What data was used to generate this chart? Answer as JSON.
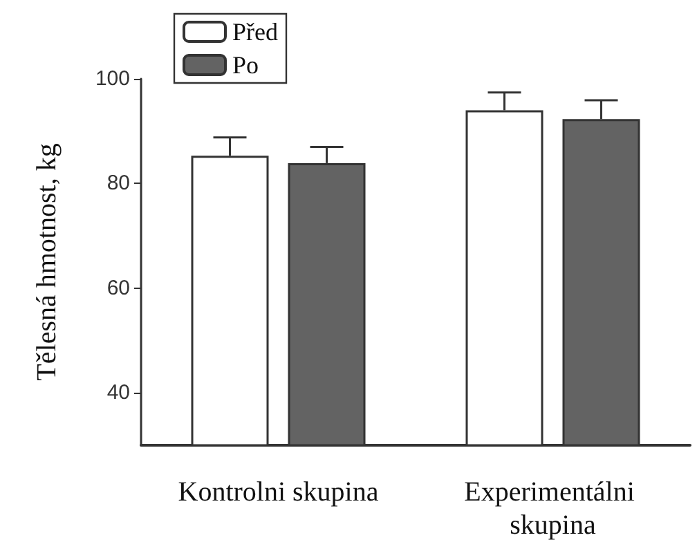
{
  "chart_data": {
    "type": "bar",
    "ylabel": "Tělesná hmotnost, kg",
    "categories": [
      "Kontrolni skupina",
      "Experimentálni skupina"
    ],
    "series": [
      {
        "name": "Před",
        "color": "#ffffff",
        "values": [
          85.3,
          94.0
        ],
        "errors": [
          [
            85.3,
            88.8
          ],
          [
            94.0,
            97.4
          ]
        ]
      },
      {
        "name": "Po",
        "color": "#636363",
        "values": [
          83.9,
          92.3
        ],
        "errors": [
          [
            83.9,
            87.0
          ],
          [
            92.3,
            95.9
          ]
        ]
      }
    ],
    "ylim": [
      30,
      100
    ],
    "yticks": [
      40,
      60,
      80,
      100
    ],
    "legend": "top left",
    "grid": false
  }
}
